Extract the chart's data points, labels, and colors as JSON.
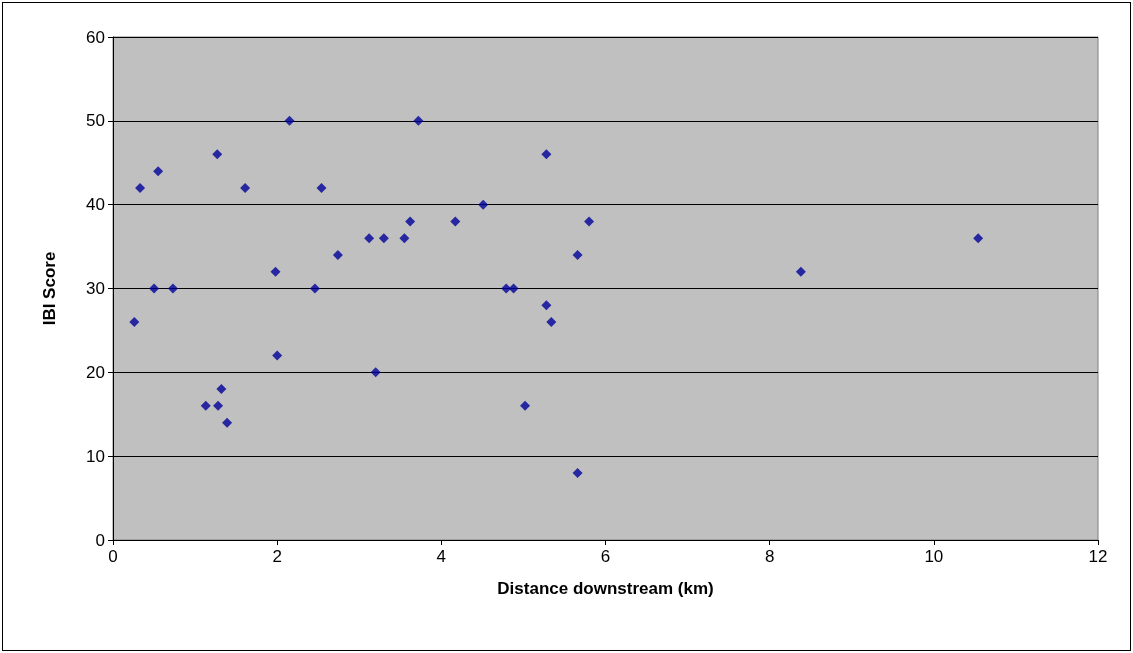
{
  "chart_data": {
    "type": "scatter",
    "xlabel": "Distance downstream (km)",
    "ylabel": "IBI Score",
    "x": [
      0.26,
      0.33,
      0.5,
      0.55,
      0.73,
      1.13,
      1.27,
      1.28,
      1.32,
      1.39,
      1.61,
      1.98,
      2.0,
      2.15,
      2.46,
      2.54,
      2.74,
      3.12,
      3.2,
      3.3,
      3.55,
      3.62,
      3.72,
      4.17,
      4.51,
      4.79,
      4.88,
      5.02,
      5.28,
      5.28,
      5.34,
      5.66,
      5.66,
      5.8,
      8.38,
      10.54
    ],
    "series": [
      {
        "color": "#000099",
        "values": [
          26,
          42,
          30,
          44,
          30,
          16,
          46,
          16,
          18,
          14,
          42,
          32,
          22,
          50,
          30,
          42,
          34,
          36,
          20,
          36,
          36,
          38,
          50,
          38,
          40,
          30,
          30,
          16,
          46,
          28,
          26,
          34,
          8,
          38,
          32,
          36
        ]
      }
    ],
    "xlim": [
      0,
      12
    ],
    "xticks": [
      0,
      2,
      4,
      6,
      8,
      10,
      12
    ],
    "ylim": [
      0,
      60
    ],
    "yticks": [
      0,
      10,
      20,
      30,
      40,
      50,
      60
    ],
    "grid": "y",
    "marker": "diamond"
  }
}
